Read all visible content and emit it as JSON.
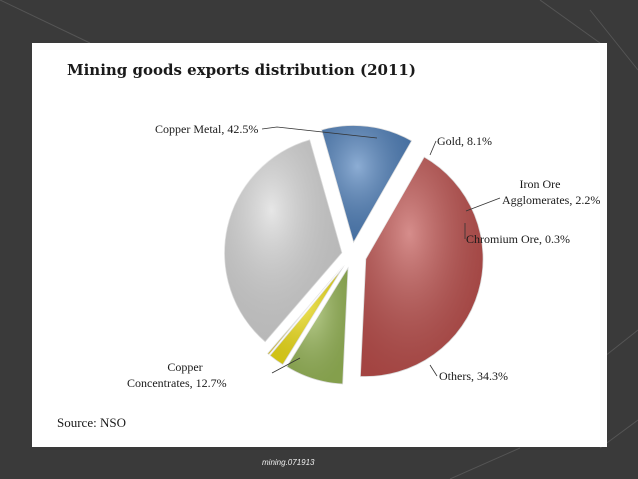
{
  "chart_data": {
    "type": "pie",
    "title": "Mining goods exports distribution (2011)",
    "source": "Source: NSO",
    "slices": [
      {
        "name": "Copper Metal",
        "value": 42.5,
        "label": "Copper Metal, 42.5%",
        "color": "#c0504d"
      },
      {
        "name": "Gold",
        "value": 8.1,
        "label": "Gold, 8.1%",
        "color": "#9bbb59"
      },
      {
        "name": "Iron Ore Agglomerates",
        "value": 2.2,
        "label": "Iron Ore Agglomerates, 2.2%",
        "color": "#f5e416"
      },
      {
        "name": "Chromium Ore",
        "value": 0.3,
        "label": "Chromium Ore, 0.3%",
        "color": "#f0d000"
      },
      {
        "name": "Others",
        "value": 34.3,
        "label": "Others, 34.3%",
        "color": "#d9d9d9"
      },
      {
        "name": "Copper Concentrates",
        "value": 12.7,
        "label": "Copper Concentrates, 12.7%",
        "color": "#4f81bd"
      }
    ]
  },
  "footer": "mining.071913"
}
